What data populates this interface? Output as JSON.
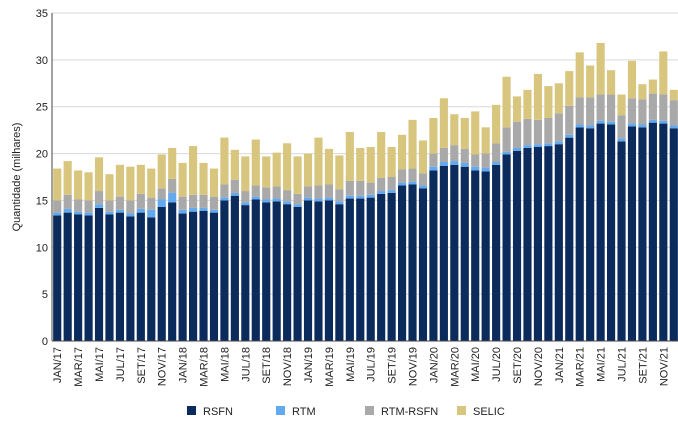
{
  "chart_data": {
    "type": "bar",
    "stacked": true,
    "ylabel": "Quantidade (milhares)",
    "xlabel": "",
    "ylim": [
      0,
      35
    ],
    "yticks": [
      0,
      5,
      10,
      15,
      20,
      25,
      30,
      35
    ],
    "grid": "horizontal",
    "legend_position": "bottom",
    "categories": [
      "JAN/17",
      "FEV/17",
      "MAR/17",
      "ABR/17",
      "MAI/17",
      "JUN/17",
      "JUL/17",
      "AGO/17",
      "SET/17",
      "OUT/17",
      "NOV/17",
      "DEZ/17",
      "JAN/18",
      "FEV/18",
      "MAR/18",
      "ABR/18",
      "MAI/18",
      "JUN/18",
      "JUL/18",
      "AGO/18",
      "SET/18",
      "OUT/18",
      "NOV/18",
      "DEZ/18",
      "JAN/19",
      "FEV/19",
      "MAR/19",
      "ABR/19",
      "MAI/19",
      "JUN/19",
      "JUL/19",
      "AGO/19",
      "SET/19",
      "OUT/19",
      "NOV/19",
      "DEZ/19",
      "JAN/20",
      "FEV/20",
      "MAR/20",
      "ABR/20",
      "MAI/20",
      "JUN/20",
      "JUL/20",
      "AGO/20",
      "SET/20",
      "OUT/20",
      "NOV/20",
      "DEZ/20",
      "JAN/21",
      "FEV/21",
      "MAR/21",
      "ABR/21",
      "MAI/21",
      "JUN/21",
      "JUL/21",
      "AGO/21",
      "SET/21",
      "OUT/21",
      "NOV/21",
      "DEZ/21"
    ],
    "tick_labels_shown": [
      "JAN/17",
      "MAR/17",
      "MAI/17",
      "JUL/17",
      "SET/17",
      "NOV/17",
      "JAN/18",
      "MAR/18",
      "MAI/18",
      "JUL/18",
      "SET/18",
      "NOV/18",
      "JAN/19",
      "MAR/19",
      "MAI/19",
      "JUL/19",
      "SET/19",
      "NOV/19",
      "JAN/20",
      "MAR/20",
      "MAI/20",
      "JUL/20",
      "SET/20",
      "NOV/20",
      "JAN/21",
      "MAR/21",
      "MAI/21",
      "JUL/21",
      "SET/21",
      "NOV/21"
    ],
    "series": [
      {
        "name": "RSFN",
        "color": "#0b2b5c",
        "values": [
          13.4,
          13.7,
          13.5,
          13.4,
          14.2,
          13.5,
          13.7,
          13.3,
          13.7,
          13.2,
          14.3,
          14.8,
          13.6,
          13.8,
          13.9,
          13.7,
          15.0,
          15.5,
          14.5,
          15.1,
          14.8,
          14.9,
          14.6,
          14.3,
          15.0,
          14.9,
          15.0,
          14.6,
          15.2,
          15.2,
          15.3,
          15.7,
          15.8,
          16.6,
          16.7,
          16.3,
          18.2,
          18.7,
          18.8,
          18.6,
          18.2,
          18.1,
          18.8,
          19.9,
          20.3,
          20.6,
          20.7,
          20.8,
          21.0,
          21.7,
          22.8,
          22.7,
          23.2,
          23.1,
          21.3,
          22.9,
          22.8,
          23.3,
          23.2,
          22.7
        ]
      },
      {
        "name": "RTM",
        "color": "#63a9f0",
        "values": [
          0.3,
          0.4,
          0.3,
          0.3,
          0.4,
          0.3,
          0.3,
          0.3,
          0.4,
          0.8,
          0.8,
          1.0,
          0.4,
          0.4,
          0.3,
          0.3,
          0.3,
          0.3,
          0.3,
          0.3,
          0.3,
          0.3,
          0.3,
          0.3,
          0.3,
          0.3,
          0.3,
          0.3,
          0.3,
          0.3,
          0.3,
          0.3,
          0.3,
          0.3,
          0.3,
          0.3,
          0.4,
          0.4,
          0.4,
          0.4,
          0.4,
          0.4,
          0.3,
          0.3,
          0.3,
          0.3,
          0.3,
          0.3,
          0.3,
          0.3,
          0.3,
          0.3,
          0.3,
          0.3,
          0.3,
          0.3,
          0.3,
          0.3,
          0.3,
          0.3
        ]
      },
      {
        "name": "RTM-RSFN",
        "color": "#a9a9a9",
        "values": [
          1.3,
          1.5,
          1.3,
          1.3,
          1.4,
          1.2,
          1.4,
          1.4,
          1.6,
          1.3,
          1.2,
          1.5,
          1.4,
          1.4,
          1.4,
          1.4,
          1.4,
          1.4,
          1.2,
          1.2,
          1.3,
          1.3,
          1.2,
          1.1,
          1.2,
          1.4,
          1.4,
          1.3,
          1.6,
          1.6,
          1.3,
          1.4,
          1.4,
          1.4,
          1.4,
          1.3,
          1.4,
          1.5,
          1.7,
          1.5,
          1.3,
          1.5,
          2.0,
          2.6,
          2.8,
          2.8,
          2.6,
          2.7,
          3.0,
          3.1,
          2.9,
          3.0,
          2.8,
          2.9,
          2.5,
          2.7,
          2.7,
          2.8,
          2.8,
          2.7
        ]
      },
      {
        "name": "SELIC",
        "color": "#d9c67e",
        "values": [
          3.4,
          3.6,
          3.1,
          3.0,
          3.6,
          2.8,
          3.4,
          3.6,
          3.1,
          3.1,
          3.6,
          3.3,
          3.6,
          5.2,
          3.4,
          3.0,
          5.0,
          3.2,
          3.7,
          4.9,
          3.3,
          3.6,
          5.0,
          4.0,
          3.5,
          5.1,
          3.8,
          3.6,
          5.2,
          3.5,
          3.8,
          4.9,
          3.2,
          3.7,
          5.2,
          3.5,
          3.8,
          5.3,
          3.3,
          3.3,
          4.6,
          2.8,
          4.1,
          5.4,
          2.7,
          3.1,
          4.9,
          3.4,
          3.2,
          3.7,
          4.8,
          3.4,
          5.5,
          2.6,
          2.2,
          4.0,
          1.6,
          1.5,
          4.6,
          1.1
        ]
      }
    ]
  }
}
